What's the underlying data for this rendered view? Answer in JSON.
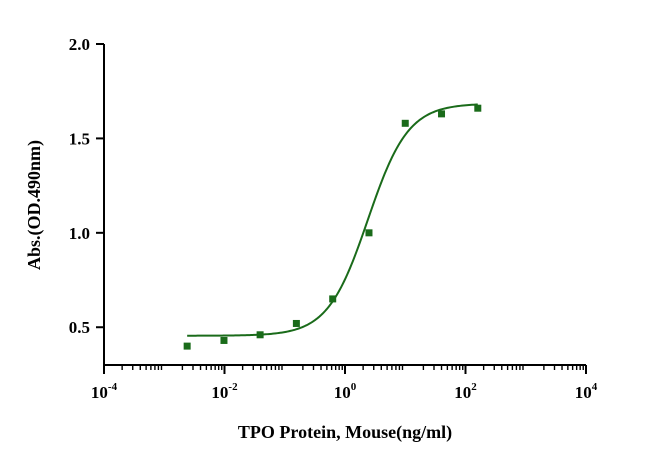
{
  "chart_data": {
    "type": "scatter",
    "title": "",
    "xlabel": "TPO Protein, Mouse(ng/ml)",
    "ylabel": "Abs.(OD.490nm)",
    "x_scale": "log",
    "xlim": [
      0.0001,
      10000
    ],
    "ylim": [
      0.3,
      2.0
    ],
    "x_ticks": [
      {
        "base": "10",
        "exp": "-4"
      },
      {
        "base": "10",
        "exp": "-2"
      },
      {
        "base": "10",
        "exp": "0"
      },
      {
        "base": "10",
        "exp": "2"
      },
      {
        "base": "10",
        "exp": "4"
      }
    ],
    "y_ticks": [
      "0.5",
      "1.0",
      "1.5",
      "2.0"
    ],
    "grid": false,
    "legend": "none",
    "color": "#1a6b1a",
    "series": [
      {
        "type": "scatter",
        "marker": "square",
        "x": [
          0.0024,
          0.0098,
          0.039,
          0.156,
          0.625,
          2.5,
          10,
          40,
          160
        ],
        "y": [
          0.4,
          0.43,
          0.46,
          0.52,
          0.65,
          1.0,
          1.58,
          1.63,
          1.66
        ]
      },
      {
        "type": "line",
        "fit": "four-parameter logistic",
        "bottom": 0.455,
        "top": 1.685,
        "ec50": 2.4,
        "hill": 1.3,
        "x_range": [
          0.0024,
          160
        ]
      }
    ]
  }
}
